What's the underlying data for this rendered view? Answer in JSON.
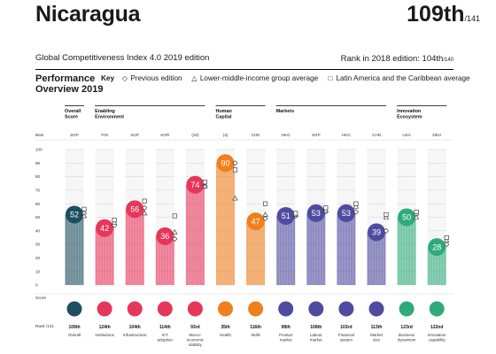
{
  "header": {
    "country": "Nicaragua",
    "rank": "109th",
    "rank_of": "/141",
    "edition": "Global Competitiveness Index 4.0 2019 edition",
    "rank_2018_label": "Rank in 2018 edition: 104th",
    "rank_2018_of": "/140"
  },
  "section": {
    "title_line1": "Performance",
    "title_line2": "Overview 2019",
    "key_label": "Key",
    "key_items": [
      {
        "symbol": "◇",
        "label": "Previous edition"
      },
      {
        "symbol": "△",
        "label": "Lower-middle-income group average"
      },
      {
        "symbol": "□",
        "label": "Latin America and the Caribbean average"
      }
    ]
  },
  "chart_data": {
    "type": "bar",
    "ylim": [
      0,
      100
    ],
    "y_ticks": [
      0,
      10,
      20,
      30,
      40,
      50,
      60,
      70,
      80,
      90,
      100
    ],
    "y_label_best": "Best",
    "y_label_score": "Score",
    "rank_row_label": "Rank /141",
    "groups": [
      {
        "label": "Overall Score",
        "start": 0,
        "end": 0
      },
      {
        "label": "Enabling Environment",
        "start": 1,
        "end": 4
      },
      {
        "label": "Human Capital",
        "start": 5,
        "end": 6
      },
      {
        "label": "Markets",
        "start": 7,
        "end": 10
      },
      {
        "label": "Innovation Ecosystem",
        "start": 11,
        "end": 12
      }
    ],
    "categories": [
      "Overall",
      "Institutions",
      "Infrastructure",
      "ICT adoption",
      "Macro-economic stability",
      "Health",
      "Skills",
      "Product market",
      "Labour market",
      "Financial system",
      "Market size",
      "Business dynamism",
      "Innovation capability"
    ],
    "best_performers": [
      "SGP",
      "FIN",
      "SGP",
      "KOR",
      "(33)",
      "(4)",
      "CHE",
      "HKG",
      "SGP",
      "HKG",
      "CHN",
      "USA",
      "DEU"
    ],
    "scores": [
      52,
      42,
      56,
      36,
      74,
      90,
      47,
      51,
      53,
      53,
      39,
      50,
      28
    ],
    "ranks": [
      "109th",
      "124th",
      "104th",
      "114th",
      "93rd",
      "35th",
      "116th",
      "98th",
      "108th",
      "103rd",
      "113th",
      "123rd",
      "122nd"
    ],
    "previous_edition": [
      53,
      44,
      57,
      34,
      73,
      90,
      49,
      51,
      54,
      54,
      40,
      52,
      30
    ],
    "lower_middle_income_avg": [
      51,
      46,
      53,
      39,
      73,
      64,
      52,
      52,
      55,
      58,
      50,
      50,
      33
    ],
    "latin_america_avg": [
      56,
      48,
      62,
      51,
      76,
      85,
      60,
      53,
      57,
      60,
      52,
      54,
      35
    ],
    "colors": [
      "#1d4f60",
      "#e6365a",
      "#e6365a",
      "#e6365a",
      "#e6365a",
      "#f07f1d",
      "#f07f1d",
      "#4f4b9f",
      "#4f4b9f",
      "#4f4b9f",
      "#4f4b9f",
      "#2fab7b",
      "#2fab7b"
    ]
  }
}
